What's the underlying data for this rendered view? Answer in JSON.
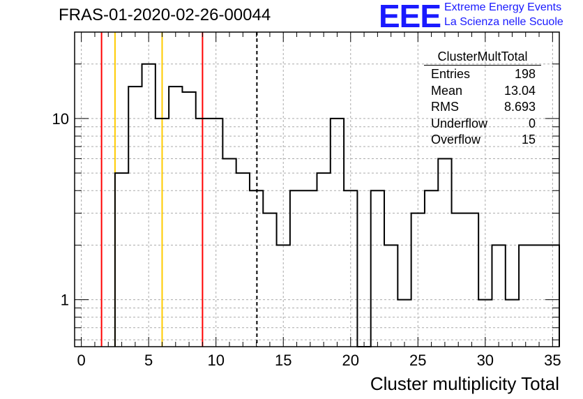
{
  "header": {
    "title": "FRAS-01-2020-02-26-00044",
    "logo_text": "EEE",
    "logo_line1": "Extreme Energy Events",
    "logo_line2": "La Scienza nelle Scuole"
  },
  "stats": {
    "title": "ClusterMultTotal",
    "rows": [
      {
        "label": "Entries",
        "value": "198"
      },
      {
        "label": "Mean",
        "value": "13.04"
      },
      {
        "label": "RMS",
        "value": "8.693"
      },
      {
        "label": "Underflow",
        "value": "0"
      },
      {
        "label": "Overflow",
        "value": "15"
      }
    ]
  },
  "chart_data": {
    "type": "histogram",
    "title": "FRAS-01-2020-02-26-00044",
    "xlabel": "Cluster multiplicity Total",
    "ylabel": "",
    "xlim": [
      -0.5,
      35.5
    ],
    "ylim": [
      0.55,
      30
    ],
    "y_scale": "log",
    "grid": true,
    "bin_width": 1,
    "bin_starts": [
      2.5,
      3.5,
      4.5,
      5.5,
      6.5,
      7.5,
      8.5,
      9.5,
      10.5,
      11.5,
      12.5,
      13.5,
      14.5,
      15.5,
      16.5,
      17.5,
      18.5,
      19.5,
      20.5,
      21.5,
      22.5,
      23.5,
      24.5,
      25.5,
      26.5,
      27.5,
      28.5,
      29.5,
      30.5,
      31.5,
      32.5,
      33.5,
      34.5
    ],
    "values": [
      5,
      15,
      20,
      10,
      15,
      14,
      10,
      10,
      6,
      5,
      4,
      3,
      2,
      4,
      4,
      5,
      10,
      4,
      0,
      4,
      2,
      1,
      3,
      4,
      6,
      3,
      3,
      1,
      2,
      1,
      2,
      2,
      2
    ],
    "x_ticks": [
      0,
      5,
      10,
      15,
      20,
      25,
      30,
      35
    ],
    "y_ticks": [
      1,
      10
    ],
    "vertical_lines": [
      {
        "x": 1.5,
        "color": "#ff0000",
        "style": "solid"
      },
      {
        "x": 2.5,
        "color": "#ffcc00",
        "style": "solid"
      },
      {
        "x": 6.0,
        "color": "#ffcc00",
        "style": "solid"
      },
      {
        "x": 9.0,
        "color": "#ff0000",
        "style": "solid"
      },
      {
        "x": 13.04,
        "color": "#000000",
        "style": "dashed"
      }
    ],
    "colors": {
      "line": "#000000",
      "grid": "#aaaaaa"
    }
  }
}
